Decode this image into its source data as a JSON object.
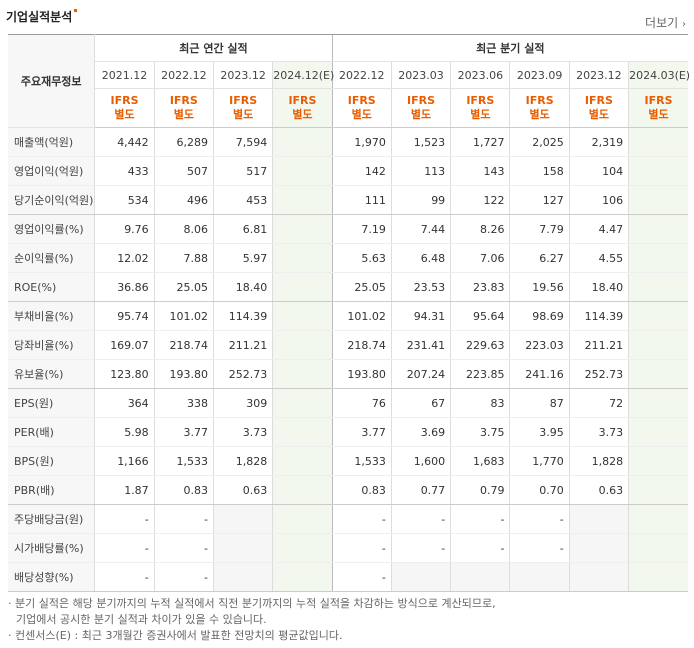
{
  "section": {
    "title": "기업실적분석",
    "more_label": "더보기",
    "more_chevron": "›"
  },
  "table": {
    "corner_label": "주요재무정보",
    "group_annual": "최근 연간 실적",
    "group_quarter": "최근 분기 실적",
    "annual_periods": [
      "2021.12",
      "2022.12",
      "2023.12",
      "2024.12(E)"
    ],
    "quarter_periods": [
      "2022.12",
      "2023.03",
      "2023.06",
      "2023.09",
      "2023.12",
      "2024.03(E)"
    ],
    "basis_line1": "IFRS",
    "basis_line2": "별도",
    "rows": [
      {
        "label": "매출액(억원)",
        "annual": [
          "4,442",
          "6,289",
          "7,594",
          ""
        ],
        "quarter": [
          "1,970",
          "1,523",
          "1,727",
          "2,025",
          "2,319",
          ""
        ]
      },
      {
        "label": "영업이익(억원)",
        "annual": [
          "433",
          "507",
          "517",
          ""
        ],
        "quarter": [
          "142",
          "113",
          "143",
          "158",
          "104",
          ""
        ]
      },
      {
        "label": "당기순이익(억원)",
        "annual": [
          "534",
          "496",
          "453",
          ""
        ],
        "quarter": [
          "111",
          "99",
          "122",
          "127",
          "106",
          ""
        ]
      },
      {
        "label": "영업이익률(%)",
        "annual": [
          "9.76",
          "8.06",
          "6.81",
          ""
        ],
        "quarter": [
          "7.19",
          "7.44",
          "8.26",
          "7.79",
          "4.47",
          ""
        ]
      },
      {
        "label": "순이익률(%)",
        "annual": [
          "12.02",
          "7.88",
          "5.97",
          ""
        ],
        "quarter": [
          "5.63",
          "6.48",
          "7.06",
          "6.27",
          "4.55",
          ""
        ]
      },
      {
        "label": "ROE(%)",
        "annual": [
          "36.86",
          "25.05",
          "18.40",
          ""
        ],
        "quarter": [
          "25.05",
          "23.53",
          "23.83",
          "19.56",
          "18.40",
          ""
        ]
      },
      {
        "label": "부채비율(%)",
        "annual": [
          "95.74",
          "101.02",
          "114.39",
          ""
        ],
        "quarter": [
          "101.02",
          "94.31",
          "95.64",
          "98.69",
          "114.39",
          ""
        ]
      },
      {
        "label": "당좌비율(%)",
        "annual": [
          "169.07",
          "218.74",
          "211.21",
          ""
        ],
        "quarter": [
          "218.74",
          "231.41",
          "229.63",
          "223.03",
          "211.21",
          ""
        ]
      },
      {
        "label": "유보율(%)",
        "annual": [
          "123.80",
          "193.80",
          "252.73",
          ""
        ],
        "quarter": [
          "193.80",
          "207.24",
          "223.85",
          "241.16",
          "252.73",
          ""
        ]
      },
      {
        "label": "EPS(원)",
        "annual": [
          "364",
          "338",
          "309",
          ""
        ],
        "quarter": [
          "76",
          "67",
          "83",
          "87",
          "72",
          ""
        ]
      },
      {
        "label": "PER(배)",
        "annual": [
          "5.98",
          "3.77",
          "3.73",
          ""
        ],
        "quarter": [
          "3.77",
          "3.69",
          "3.75",
          "3.95",
          "3.73",
          ""
        ]
      },
      {
        "label": "BPS(원)",
        "annual": [
          "1,166",
          "1,533",
          "1,828",
          ""
        ],
        "quarter": [
          "1,533",
          "1,600",
          "1,683",
          "1,770",
          "1,828",
          ""
        ]
      },
      {
        "label": "PBR(배)",
        "annual": [
          "1.87",
          "0.83",
          "0.63",
          ""
        ],
        "quarter": [
          "0.83",
          "0.77",
          "0.79",
          "0.70",
          "0.63",
          ""
        ]
      },
      {
        "label": "주당배당금(원)",
        "annual": [
          "-",
          "-",
          "",
          ""
        ],
        "quarter": [
          "-",
          "-",
          "-",
          "-",
          "",
          ""
        ]
      },
      {
        "label": "시가배당률(%)",
        "annual": [
          "-",
          "-",
          "",
          ""
        ],
        "quarter": [
          "-",
          "-",
          "-",
          "-",
          "",
          ""
        ]
      },
      {
        "label": "배당성향(%)",
        "annual": [
          "-",
          "-",
          "",
          ""
        ],
        "quarter": [
          "-",
          "",
          "",
          "",
          "",
          ""
        ]
      }
    ]
  },
  "notes": {
    "line1": "· 분기 실적은 해당 분기까지의 누적 실적에서 직전 분기까지의 누적 실적을 차감하는 방식으로 계산되므로,",
    "line2": "기업에서 공시한 분기 실적과 차이가 있을 수 있습니다.",
    "line3": "· 컨센서스(E) : 최근 3개월간 증권사에서 발표한 전망치의 평균값입니다."
  }
}
